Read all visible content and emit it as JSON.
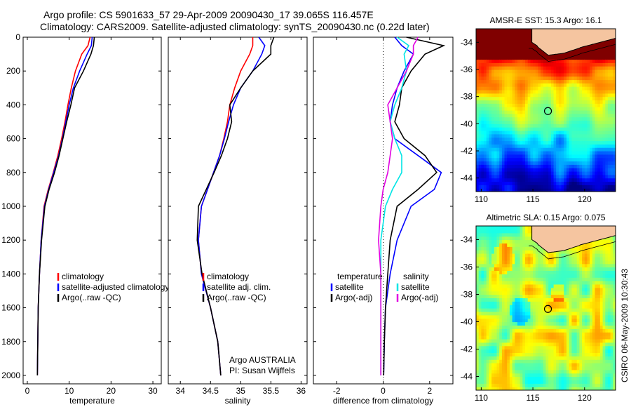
{
  "header": {
    "line1": "Argo profile: CS 5901633_57 29-Apr-2009 20090430_17 39.065S 116.457E",
    "line2": "Climatology: CARS2009. Satellite-adjusted climatology: synTS_20090430.nc (0.22d later)"
  },
  "credit": "CSIRO 06-May-2009 10:30:43",
  "colors": {
    "climatology": "#ff0000",
    "satellite": "#0000ff",
    "argo": "#000000",
    "satellite_salinity": "#00e5e5",
    "argo_adj_salinity": "#e000e0",
    "land": "#f5c5a0"
  },
  "chart_data": [
    {
      "type": "line",
      "id": "temperature",
      "xlabel": "temperature",
      "ylabel": "",
      "xlim": [
        -1,
        32
      ],
      "ylim": [
        2050,
        0
      ],
      "xticks": [
        0,
        10,
        20,
        30
      ],
      "xtick_labels": [
        "0",
        "10",
        "20",
        "30"
      ],
      "yticks": [
        0,
        200,
        400,
        600,
        800,
        1000,
        1200,
        1400,
        1600,
        1800,
        2000
      ],
      "ytick_labels": [
        "0",
        "200",
        "400",
        "600",
        "800",
        "1000",
        "1200",
        "1400",
        "1600",
        "1800",
        "2000"
      ],
      "legend": [
        "climatology",
        "satellite-adjusted climatology",
        "Argo(..raw -QC)"
      ],
      "series": [
        {
          "name": "climatology",
          "color": "climatology",
          "x": [
            15.0,
            14.5,
            13.0,
            11.5,
            10.5,
            9.7,
            9.0,
            8.2,
            7.3,
            6.2,
            5.0,
            4.0,
            3.3,
            2.9,
            2.6,
            2.5,
            2.4
          ],
          "y": [
            0,
            50,
            100,
            200,
            300,
            400,
            500,
            600,
            700,
            800,
            900,
            1000,
            1200,
            1400,
            1600,
            1800,
            2000
          ]
        },
        {
          "name": "satellite-adjusted climatology",
          "color": "satellite",
          "x": [
            15.5,
            15.3,
            14.3,
            12.5,
            11.0,
            10.0,
            9.2,
            8.4,
            7.5,
            6.3,
            5.1,
            4.1,
            3.3,
            2.9,
            2.6,
            2.5,
            2.4
          ],
          "y": [
            0,
            50,
            100,
            200,
            300,
            400,
            500,
            600,
            700,
            800,
            900,
            1000,
            1200,
            1400,
            1600,
            1800,
            2000
          ]
        },
        {
          "name": "Argo(..raw -QC)",
          "color": "argo",
          "x": [
            16.0,
            15.8,
            15.2,
            13.4,
            11.3,
            10.4,
            9.4,
            8.5,
            7.6,
            6.5,
            5.2,
            4.2,
            3.4,
            2.9,
            2.6,
            2.5,
            2.4
          ],
          "y": [
            0,
            50,
            100,
            200,
            300,
            400,
            500,
            600,
            700,
            800,
            900,
            1000,
            1200,
            1400,
            1600,
            1800,
            2000
          ]
        }
      ]
    },
    {
      "type": "line",
      "id": "salinity",
      "xlabel": "salinity",
      "ylabel": "",
      "xlim": [
        33.8,
        36.1
      ],
      "ylim": [
        2050,
        0
      ],
      "xticks": [
        34,
        34.5,
        35,
        35.5,
        36
      ],
      "xtick_labels": [
        "34",
        "34.5",
        "35",
        "35.5",
        "36"
      ],
      "yticks": [
        0,
        200,
        400,
        600,
        800,
        1000,
        1200,
        1400,
        1600,
        1800,
        2000
      ],
      "ytick_labels": [],
      "legend": [
        "climatology",
        "satellite adj. clim.",
        "Argo(..raw -QC)"
      ],
      "annotation": [
        "Argo AUSTRALIA",
        "PI: Susan Wijffels"
      ],
      "series": [
        {
          "name": "climatology",
          "color": "climatology",
          "x": [
            35.2,
            35.2,
            35.15,
            35.0,
            34.9,
            34.82,
            34.78,
            34.72,
            34.65,
            34.55,
            34.45,
            34.35,
            34.3,
            34.35,
            34.5,
            34.62,
            34.67
          ],
          "y": [
            0,
            50,
            100,
            200,
            300,
            400,
            500,
            600,
            700,
            800,
            900,
            1000,
            1200,
            1400,
            1600,
            1800,
            2000
          ]
        },
        {
          "name": "satellite adj. clim.",
          "color": "satellite",
          "x": [
            35.3,
            35.4,
            35.35,
            35.2,
            35.0,
            34.88,
            34.8,
            34.73,
            34.65,
            34.55,
            34.45,
            34.35,
            34.3,
            34.35,
            34.5,
            34.62,
            34.67
          ],
          "y": [
            0,
            50,
            100,
            200,
            300,
            400,
            500,
            600,
            700,
            800,
            900,
            1000,
            1200,
            1400,
            1600,
            1800,
            2000
          ]
        },
        {
          "name": "Argo(..raw -QC)",
          "color": "argo",
          "x": [
            35.55,
            35.5,
            35.5,
            35.2,
            35.0,
            34.82,
            34.85,
            34.78,
            34.68,
            34.56,
            34.43,
            34.3,
            34.28,
            34.36,
            34.5,
            34.62,
            34.67
          ],
          "y": [
            0,
            50,
            100,
            200,
            300,
            400,
            500,
            600,
            700,
            800,
            900,
            1000,
            1200,
            1400,
            1600,
            1800,
            2000
          ]
        }
      ]
    },
    {
      "type": "line",
      "id": "difference",
      "xlabel": "difference from climatology",
      "ylabel": "",
      "xlim": [
        -3,
        3
      ],
      "ylim": [
        2050,
        0
      ],
      "xticks": [
        -2,
        0,
        2
      ],
      "xtick_labels": [
        "-2",
        "0",
        "2"
      ],
      "yticks": [
        0,
        200,
        400,
        600,
        800,
        1000,
        1200,
        1400,
        1600,
        1800,
        2000
      ],
      "ytick_labels": [],
      "legend_columns": [
        {
          "heading": "temperature",
          "entries": [
            "satellite",
            "Argo(-adj)"
          ]
        },
        {
          "heading": "salinity",
          "entries": [
            "satellite",
            "Argo(-adj)"
          ]
        }
      ],
      "series": [
        {
          "name": "temperature satellite",
          "color": "satellite",
          "x": [
            0.5,
            0.8,
            1.3,
            0.9,
            0.6,
            0.4,
            0.3,
            0.5,
            1.5,
            2.5,
            2.2,
            1.2,
            0.6,
            0.3,
            0.1,
            0.05,
            0.02
          ],
          "y": [
            0,
            50,
            100,
            200,
            300,
            400,
            500,
            600,
            700,
            800,
            900,
            1000,
            1200,
            1400,
            1600,
            1800,
            2000
          ]
        },
        {
          "name": "temperature Argo(-adj)",
          "color": "argo",
          "x": [
            1.0,
            2.6,
            1.8,
            1.2,
            0.8,
            0.7,
            0.5,
            0.9,
            1.8,
            2.3,
            1.5,
            0.6,
            0.3,
            0.2,
            0.1,
            0.05,
            0.02
          ],
          "y": [
            0,
            50,
            100,
            200,
            300,
            400,
            500,
            600,
            700,
            800,
            900,
            1000,
            1200,
            1400,
            1600,
            1800,
            2000
          ]
        },
        {
          "name": "salinity satellite",
          "color": "satellite_salinity",
          "x": [
            0.6,
            1.1,
            0.9,
            1.0,
            0.8,
            0.5,
            0.3,
            0.5,
            0.8,
            0.8,
            0.4,
            0.1,
            -0.1,
            -0.1,
            -0.1,
            -0.1,
            -0.1
          ],
          "y": [
            0,
            50,
            100,
            200,
            300,
            400,
            500,
            600,
            700,
            800,
            900,
            1000,
            1200,
            1400,
            1600,
            1800,
            2000
          ]
        },
        {
          "name": "salinity Argo(-adj)",
          "color": "argo_adj_salinity",
          "x": [
            1.5,
            1.3,
            1.3,
            1.0,
            0.6,
            0.2,
            0.3,
            0.4,
            0.3,
            0.2,
            0.0,
            -0.1,
            -0.2,
            -0.1,
            -0.1,
            -0.1,
            -0.1
          ],
          "y": [
            0,
            50,
            100,
            200,
            300,
            400,
            500,
            600,
            700,
            800,
            900,
            1000,
            1200,
            1400,
            1600,
            1800,
            2000
          ]
        }
      ]
    },
    {
      "type": "heatmap",
      "id": "sst_map",
      "title": "AMSR-E SST: 15.3 Argo: 16.1",
      "xlim": [
        109.5,
        123
      ],
      "ylim": [
        -45,
        -33
      ],
      "xticks": [
        110,
        115,
        120
      ],
      "xtick_labels": [
        "110",
        "115",
        "120"
      ],
      "yticks": [
        -34,
        -36,
        -38,
        -40,
        -42,
        -44
      ],
      "ytick_labels": [
        "-34",
        "-36",
        "-38",
        "-40",
        "-42",
        "-44"
      ],
      "float_position": {
        "lon": 116.457,
        "lat": -39.065
      }
    },
    {
      "type": "heatmap",
      "id": "sla_map",
      "title": "Altimetric SLA: 0.15 Argo: 0.075",
      "xlim": [
        109.5,
        123
      ],
      "ylim": [
        -45,
        -33
      ],
      "xticks": [
        110,
        115,
        120
      ],
      "xtick_labels": [
        "110",
        "115",
        "120"
      ],
      "yticks": [
        -34,
        -36,
        -38,
        -40,
        -42,
        -44
      ],
      "ytick_labels": [
        "-34",
        "-36",
        "-38",
        "-40",
        "-42",
        "-44"
      ],
      "float_position": {
        "lon": 116.457,
        "lat": -39.065
      }
    }
  ]
}
